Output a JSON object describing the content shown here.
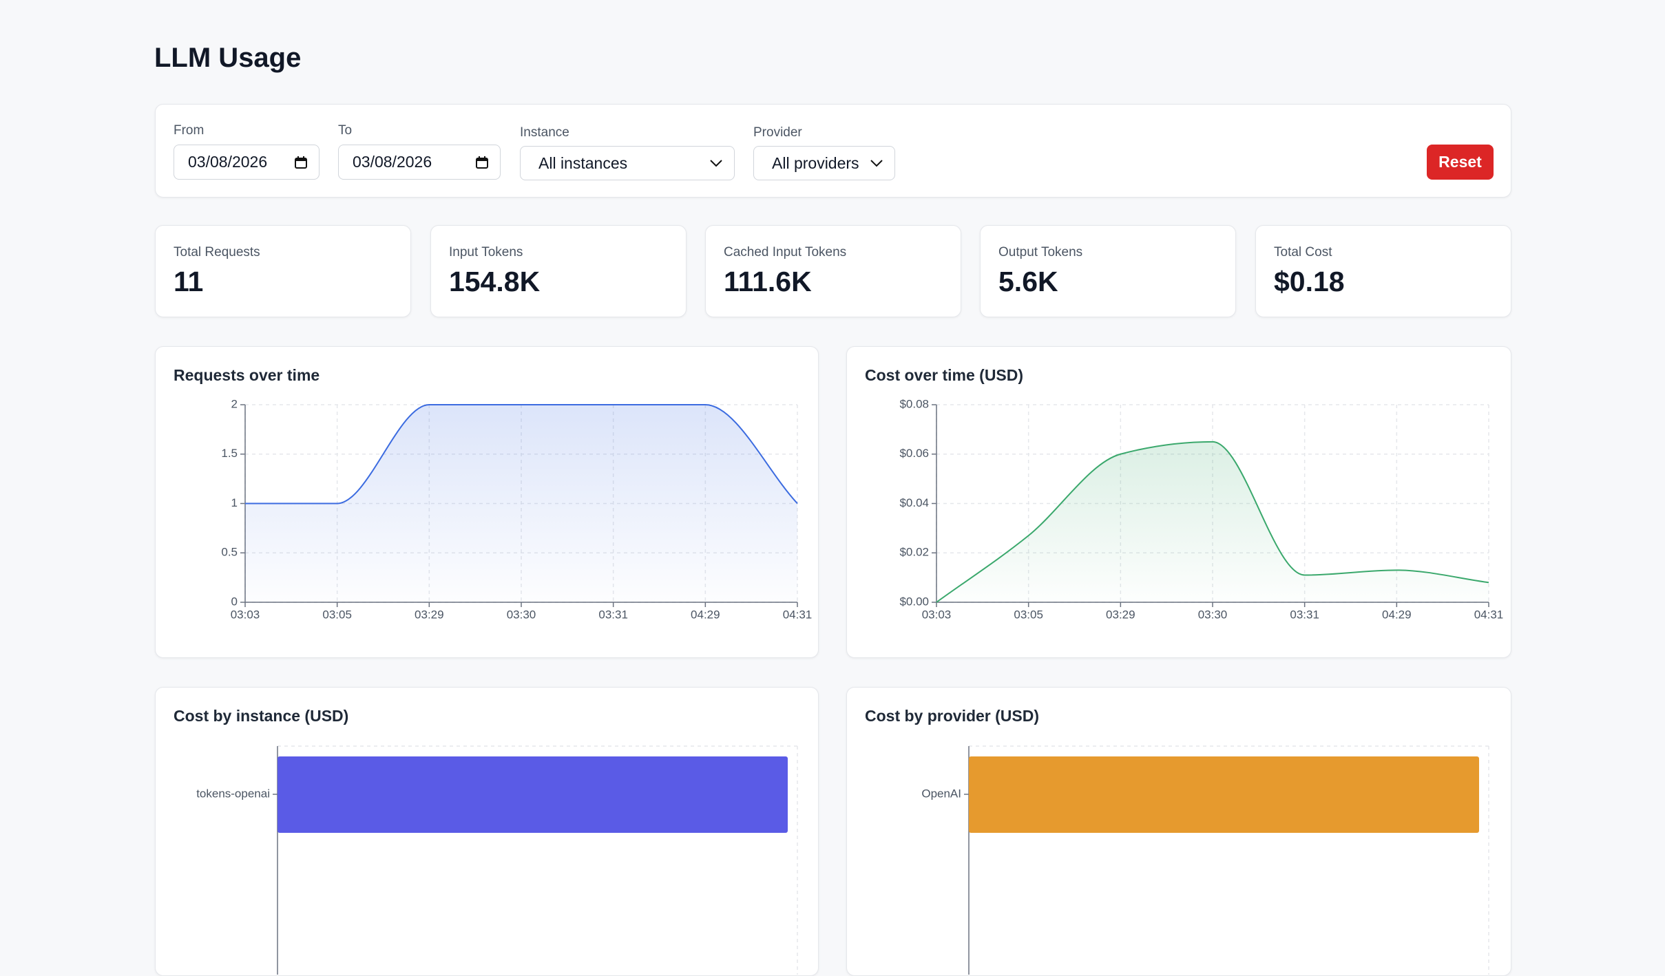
{
  "header": {
    "title": "LLM Usage"
  },
  "filters": {
    "from": {
      "label": "From",
      "value": "03/08/2026"
    },
    "to": {
      "label": "To",
      "value": "03/08/2026"
    },
    "instance": {
      "label": "Instance",
      "value": "All instances"
    },
    "provider": {
      "label": "Provider",
      "value": "All providers"
    },
    "reset": "Reset"
  },
  "stats": [
    {
      "label": "Total Requests",
      "value": "11"
    },
    {
      "label": "Input Tokens",
      "value": "154.8K"
    },
    {
      "label": "Cached Input Tokens",
      "value": "111.6K"
    },
    {
      "label": "Output Tokens",
      "value": "5.6K"
    },
    {
      "label": "Total Cost",
      "value": "$0.18"
    }
  ],
  "chart_data": [
    {
      "type": "line",
      "title": "Requests over time",
      "color": "#3b6be0",
      "area": true,
      "grid": true,
      "categories": [
        "03:03",
        "03:05",
        "03:29",
        "03:30",
        "03:31",
        "04:29",
        "04:31"
      ],
      "values": [
        1,
        1,
        2,
        2,
        2,
        2,
        1
      ],
      "ylim": [
        0,
        2
      ],
      "yticks": [
        0,
        0.5,
        1,
        1.5,
        2
      ]
    },
    {
      "type": "line",
      "title": "Cost over time (USD)",
      "color": "#3aa86c",
      "area": true,
      "grid": true,
      "categories": [
        "03:03",
        "03:05",
        "03:29",
        "03:30",
        "03:31",
        "04:29",
        "04:31"
      ],
      "values": [
        0,
        0.027,
        0.06,
        0.065,
        0.011,
        0.013,
        0.008
      ],
      "ylim": [
        0,
        0.08
      ],
      "yticks": [
        {
          "value": 0,
          "label": "$0.00"
        },
        {
          "value": 0.02,
          "label": "$0.02"
        },
        {
          "value": 0.04,
          "label": "$0.04"
        },
        {
          "value": 0.06,
          "label": "$0.06"
        },
        {
          "value": 0.08,
          "label": "$0.08"
        }
      ]
    },
    {
      "type": "bar",
      "horizontal": true,
      "title": "Cost by instance (USD)",
      "color": "#5a5be6",
      "grid": true,
      "categories": [
        "tokens-openai"
      ],
      "values": [
        0.18
      ],
      "xlim": [
        0,
        0.18
      ]
    },
    {
      "type": "bar",
      "horizontal": true,
      "title": "Cost by provider (USD)",
      "color": "#e69a2e",
      "grid": true,
      "categories": [
        "OpenAI"
      ],
      "values": [
        0.18
      ],
      "xlim": [
        0,
        0.18
      ]
    }
  ]
}
